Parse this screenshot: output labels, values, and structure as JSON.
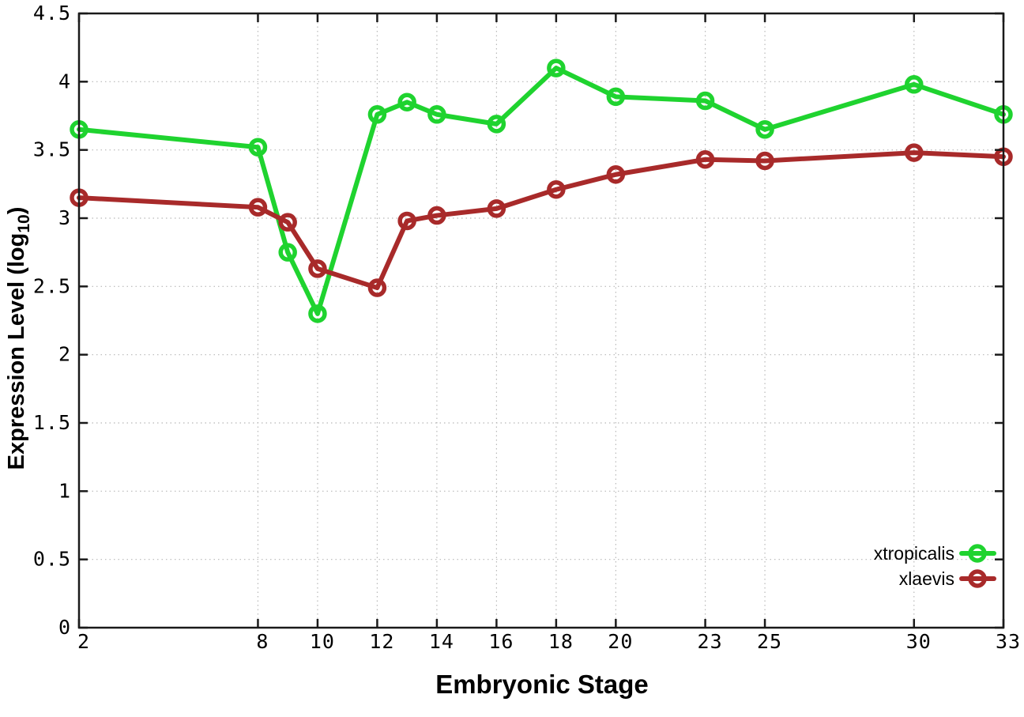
{
  "figure": {
    "background": "#ffffff",
    "border_color": "#1a1a1a",
    "grid_color": "#b8b8b8",
    "xlabel": "Embryonic Stage",
    "ylabel_parts": [
      "Expression Level (log",
      "10",
      ")"
    ]
  },
  "legend": {
    "position": "bottom-right",
    "entries": [
      "xtropicalis",
      "xlaevis"
    ]
  },
  "chart_data": {
    "type": "line",
    "title": "",
    "xlabel": "Embryonic Stage",
    "ylabel": "Expression Level (log10)",
    "xlim": [
      2,
      33
    ],
    "ylim": [
      0,
      4.5
    ],
    "xticks": [
      2,
      8,
      10,
      12,
      14,
      16,
      18,
      20,
      23,
      25,
      30,
      33
    ],
    "yticks": [
      0,
      0.5,
      1,
      1.5,
      2,
      2.5,
      3,
      3.5,
      4,
      4.5
    ],
    "grid": true,
    "legend_position": "bottom-right",
    "marker": "open-circle",
    "x": [
      2,
      8,
      9,
      10,
      12,
      13,
      14,
      16,
      18,
      20,
      23,
      25,
      30,
      33
    ],
    "series": [
      {
        "name": "xtropicalis",
        "color": "#1fd32f",
        "values": [
          3.65,
          3.52,
          2.75,
          2.3,
          3.76,
          3.85,
          3.76,
          3.69,
          4.1,
          3.89,
          3.86,
          3.65,
          3.98,
          3.76
        ]
      },
      {
        "name": "xlaevis",
        "color": "#a82a2a",
        "values": [
          3.15,
          3.08,
          2.97,
          2.63,
          2.49,
          2.98,
          3.02,
          3.07,
          3.21,
          3.32,
          3.43,
          3.42,
          3.48,
          3.45
        ]
      }
    ]
  }
}
